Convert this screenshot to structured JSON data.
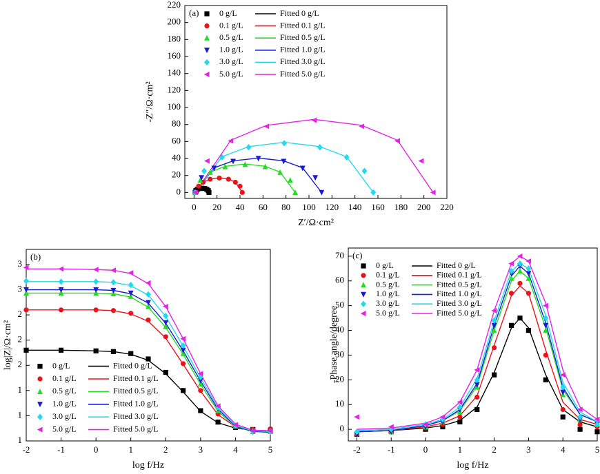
{
  "chart_data": [
    {
      "type": "nyquist",
      "panel_label": "(a)",
      "xlabel": "Z′/Ω·cm²",
      "ylabel": "-Z″/Ω·cm²",
      "legend": "upper center",
      "xlim": [
        -8,
        220
      ],
      "ylim": [
        -7,
        220
      ],
      "xticks": [
        0,
        20,
        40,
        60,
        80,
        100,
        120,
        140,
        160,
        180,
        200,
        220
      ],
      "yticks": [
        0,
        20,
        40,
        60,
        80,
        100,
        120,
        140,
        160,
        180,
        200,
        220
      ],
      "series": [
        {
          "name": "0 g/L",
          "color": "#000000",
          "marker": "square",
          "x": [
            1,
            1.6,
            2.8,
            4.6,
            7,
            9.4,
            11.2,
            12.4,
            13
          ],
          "values": [
            0,
            2.2,
            3.6,
            4.6,
            5,
            4.6,
            3.6,
            2.2,
            0
          ]
        },
        {
          "name": "0.1 g/L",
          "color": "#e8141b",
          "marker": "circle",
          "x": [
            2,
            4,
            8,
            14,
            22,
            30,
            36,
            40,
            42
          ],
          "values": [
            0,
            7.4,
            12.1,
            15.6,
            17,
            15.6,
            12.1,
            7.4,
            0
          ]
        },
        {
          "name": "0.5 g/L",
          "color": "#22dd22",
          "marker": "triangle-up",
          "x": [
            1,
            5.4,
            14.1,
            27.1,
            44.5,
            61.9,
            74.9,
            83.7,
            88
          ],
          "values": [
            0,
            14.4,
            23.6,
            30.3,
            33,
            30.3,
            23.6,
            14.4,
            0
          ]
        },
        {
          "name": "1.0 g/L",
          "color": "#1a1ad6",
          "marker": "triangle-down",
          "x": [
            1,
            6.5,
            17.5,
            34,
            56,
            78,
            94.5,
            105.5,
            111
          ],
          "values": [
            0,
            17.4,
            28.6,
            36.7,
            40,
            36.7,
            28.6,
            17.4,
            0
          ]
        },
        {
          "name": "3.0 g/L",
          "color": "#22d8ee",
          "marker": "diamond",
          "x": [
            1,
            8.8,
            24.3,
            47.5,
            78.5,
            109.5,
            132.8,
            148.3,
            156
          ],
          "values": [
            0,
            25.3,
            41.4,
            53.2,
            58,
            53.2,
            41.4,
            25.3,
            0
          ]
        },
        {
          "name": "5.0 g/L",
          "color": "#e622e6",
          "marker": "triangle-left",
          "x": [
            1,
            11.4,
            32,
            63.1,
            104.5,
            145.9,
            177,
            197.7,
            208
          ],
          "values": [
            0,
            37.1,
            60.7,
            77.9,
            85,
            77.9,
            60.7,
            37.1,
            0
          ]
        }
      ],
      "fits": [
        {
          "name": "Fitted 0 g/L",
          "color": "#000000",
          "x": [
            1,
            2.8,
            4.6,
            7,
            9.4,
            11.2,
            13
          ],
          "values": [
            0,
            3.5,
            4.5,
            4.9,
            4.5,
            3.5,
            0
          ]
        },
        {
          "name": "Fitted 0.1 g/L",
          "color": "#e8141b",
          "x": [
            2,
            8,
            14,
            22,
            30,
            36,
            42
          ],
          "values": [
            0,
            12.3,
            15.8,
            17.2,
            15.8,
            12.3,
            0
          ]
        },
        {
          "name": "Fitted 0.5 g/L",
          "color": "#22dd22",
          "x": [
            1,
            14.1,
            27.1,
            44.5,
            61.9,
            74.9,
            88
          ],
          "values": [
            0,
            24,
            30.8,
            33.5,
            30.8,
            24,
            0
          ]
        },
        {
          "name": "Fitted 1.0 g/L",
          "color": "#1a1ad6",
          "x": [
            1,
            17.5,
            34,
            56,
            78,
            94.5,
            111
          ],
          "values": [
            0,
            29,
            37.2,
            40.5,
            37.2,
            29,
            0
          ]
        },
        {
          "name": "Fitted 3.0 g/L",
          "color": "#22d8ee",
          "x": [
            1,
            24.3,
            47.5,
            78.5,
            109.5,
            132.8,
            156
          ],
          "values": [
            0,
            42,
            54,
            59,
            54,
            42,
            0
          ]
        },
        {
          "name": "Fitted 5.0 g/L",
          "color": "#e622e6",
          "x": [
            1,
            32,
            63.1,
            104.5,
            145.9,
            177,
            208
          ],
          "values": [
            0,
            61.5,
            79,
            86,
            79,
            61.5,
            0
          ]
        }
      ]
    },
    {
      "type": "bode",
      "panel_label": "(b)",
      "xlabel": "log f/Hz",
      "ylabel": "log|Z|/Ω·cm²",
      "legend": "lower left",
      "xlim": [
        -2,
        5
      ],
      "ylim": [
        0.6,
        3.45
      ],
      "xticks": [
        -2,
        -1,
        0,
        1,
        2,
        3,
        4,
        5
      ],
      "yticks": [
        {
          "value": 0.6,
          "label": "1"
        },
        {
          "value": 0.975,
          "label": "1"
        },
        {
          "value": 1.35,
          "label": "1"
        },
        {
          "value": 1.725,
          "label": "2"
        },
        {
          "value": 2.1,
          "label": "2"
        },
        {
          "value": 2.475,
          "label": "2"
        },
        {
          "value": 2.85,
          "label": "3"
        },
        {
          "value": 3.225,
          "label": "3"
        }
      ],
      "x": [
        -2,
        -1,
        0,
        0.5,
        1,
        1.5,
        2,
        2.5,
        3,
        3.5,
        4,
        4.5,
        5
      ],
      "series": [
        {
          "name": "0 g/L",
          "color": "#000000",
          "marker": "square",
          "values": [
            1.95,
            1.95,
            1.94,
            1.93,
            1.9,
            1.82,
            1.62,
            1.35,
            1.05,
            0.88,
            0.8,
            0.77,
            0.76
          ]
        },
        {
          "name": "0.1 g/L",
          "color": "#e8141b",
          "marker": "circle",
          "values": [
            2.55,
            2.55,
            2.55,
            2.54,
            2.5,
            2.4,
            2.15,
            1.75,
            1.35,
            1.0,
            0.82,
            0.77,
            0.78
          ]
        },
        {
          "name": "0.5 g/L",
          "color": "#22dd22",
          "marker": "triangle-up",
          "values": [
            2.8,
            2.8,
            2.8,
            2.79,
            2.75,
            2.6,
            2.3,
            1.9,
            1.45,
            1.05,
            0.82,
            0.74,
            0.74
          ]
        },
        {
          "name": "1.0 g/L",
          "color": "#1a1ad6",
          "marker": "triangle-down",
          "values": [
            2.85,
            2.85,
            2.85,
            2.84,
            2.8,
            2.66,
            2.36,
            1.95,
            1.5,
            1.08,
            0.82,
            0.73,
            0.73
          ]
        },
        {
          "name": "3.0 g/L",
          "color": "#22d8ee",
          "marker": "diamond",
          "values": [
            2.98,
            2.97,
            2.97,
            2.96,
            2.92,
            2.78,
            2.46,
            2.02,
            1.55,
            1.1,
            0.83,
            0.74,
            0.74
          ]
        },
        {
          "name": "5.0 g/L",
          "color": "#e622e6",
          "marker": "triangle-left",
          "values": [
            3.18,
            3.16,
            3.15,
            3.14,
            3.1,
            2.95,
            2.6,
            2.12,
            1.6,
            1.12,
            0.84,
            0.75,
            0.75
          ]
        }
      ],
      "fits": [
        {
          "name": "Fitted 0 g/L",
          "color": "#000000",
          "values": [
            1.95,
            1.95,
            1.94,
            1.93,
            1.89,
            1.8,
            1.6,
            1.33,
            1.04,
            0.87,
            0.79,
            0.76,
            0.75
          ]
        },
        {
          "name": "Fitted 0.1 g/L",
          "color": "#e8141b",
          "values": [
            2.55,
            2.55,
            2.55,
            2.54,
            2.49,
            2.38,
            2.13,
            1.74,
            1.34,
            0.99,
            0.81,
            0.76,
            0.75
          ]
        },
        {
          "name": "Fitted 0.5 g/L",
          "color": "#22dd22",
          "values": [
            2.8,
            2.8,
            2.8,
            2.79,
            2.74,
            2.59,
            2.29,
            1.89,
            1.44,
            1.04,
            0.81,
            0.74,
            0.73
          ]
        },
        {
          "name": "Fitted 1.0 g/L",
          "color": "#1a1ad6",
          "values": [
            2.85,
            2.85,
            2.85,
            2.84,
            2.79,
            2.65,
            2.35,
            1.94,
            1.49,
            1.07,
            0.82,
            0.74,
            0.73
          ]
        },
        {
          "name": "Fitted 3.0 g/L",
          "color": "#22d8ee",
          "values": [
            2.97,
            2.97,
            2.97,
            2.96,
            2.91,
            2.77,
            2.45,
            2.01,
            1.54,
            1.09,
            0.83,
            0.75,
            0.74
          ]
        },
        {
          "name": "Fitted 5.0 g/L",
          "color": "#e622e6",
          "values": [
            3.16,
            3.16,
            3.15,
            3.14,
            3.09,
            2.94,
            2.6,
            2.12,
            1.6,
            1.12,
            0.85,
            0.76,
            0.75
          ]
        }
      ]
    },
    {
      "type": "bode",
      "panel_label": "(c)",
      "xlabel": "log f/Hz",
      "ylabel": "-Phase angle/degree",
      "legend": "upper left",
      "xlim": [
        -2.25,
        5
      ],
      "ylim": [
        -4.7,
        73.3
      ],
      "xticks": [
        -2,
        -1,
        0,
        1,
        2,
        3,
        4,
        5
      ],
      "yticks": [
        0,
        10,
        20,
        30,
        40,
        50,
        60,
        70
      ],
      "x": [
        -2,
        -1,
        0,
        0.5,
        1,
        1.5,
        2,
        2.5,
        2.75,
        3,
        3.5,
        4,
        4.5,
        5
      ],
      "series": [
        {
          "name": "0 g/L",
          "color": "#000000",
          "marker": "square",
          "values": [
            -2,
            -1,
            0,
            1,
            3,
            8,
            22,
            42,
            45,
            40,
            20,
            5,
            0,
            -1
          ]
        },
        {
          "name": "0.1 g/L",
          "color": "#e8141b",
          "marker": "circle",
          "values": [
            -2,
            -1,
            0.5,
            2,
            5,
            13,
            33,
            55,
            59,
            55,
            30,
            8,
            2,
            1
          ]
        },
        {
          "name": "0.5 g/L",
          "color": "#22dd22",
          "marker": "triangle-up",
          "values": [
            -1,
            -1,
            1,
            3,
            7,
            17,
            40,
            61,
            64,
            61,
            40,
            14,
            4,
            2
          ]
        },
        {
          "name": "1.0 g/L",
          "color": "#1a1ad6",
          "marker": "triangle-down",
          "values": [
            -2,
            -1,
            1,
            3,
            8,
            18,
            42,
            63,
            66,
            63,
            42,
            15,
            4,
            2
          ]
        },
        {
          "name": "3.0 g/L",
          "color": "#22d8ee",
          "marker": "diamond",
          "values": [
            -1,
            0,
            2,
            4,
            9,
            20,
            44,
            64,
            67,
            65,
            45,
            17,
            5,
            2
          ]
        },
        {
          "name": "5.0 g/L",
          "color": "#e622e6",
          "marker": "triangle-left",
          "values": [
            5,
            1,
            2,
            5,
            11,
            24,
            48,
            67,
            70,
            68,
            50,
            22,
            8,
            4
          ]
        }
      ],
      "fits": [
        {
          "name": "Fitted 0 g/L",
          "color": "#000000",
          "values": [
            -1,
            -0.5,
            0.5,
            1.5,
            3.5,
            9,
            23,
            41,
            45,
            41,
            22,
            8,
            3,
            1
          ]
        },
        {
          "name": "Fitted 0.1 g/L",
          "color": "#e8141b",
          "values": [
            -1,
            -0.5,
            1,
            2.5,
            5.5,
            13.5,
            34,
            54,
            58,
            55,
            32,
            11,
            4,
            2
          ]
        },
        {
          "name": "Fitted 0.5 g/L",
          "color": "#22dd22",
          "values": [
            -1,
            -0.5,
            1.5,
            3.5,
            7.5,
            17.5,
            40,
            60,
            64,
            61,
            41,
            16,
            6,
            3
          ]
        },
        {
          "name": "Fitted 1.0 g/L",
          "color": "#1a1ad6",
          "values": [
            -1,
            -0.5,
            1.5,
            3.5,
            8,
            18.5,
            42,
            62,
            66,
            63,
            43,
            17,
            6,
            3
          ]
        },
        {
          "name": "Fitted 3.0 g/L",
          "color": "#22d8ee",
          "values": [
            -0.5,
            0,
            2,
            4,
            9,
            20.5,
            44,
            64,
            67,
            65,
            46,
            19,
            7,
            3
          ]
        },
        {
          "name": "Fitted 5.0 g/L",
          "color": "#e622e6",
          "values": [
            0,
            0.5,
            2.5,
            5,
            11,
            24,
            48,
            67,
            70,
            68,
            51,
            24,
            9,
            4
          ]
        }
      ]
    }
  ]
}
